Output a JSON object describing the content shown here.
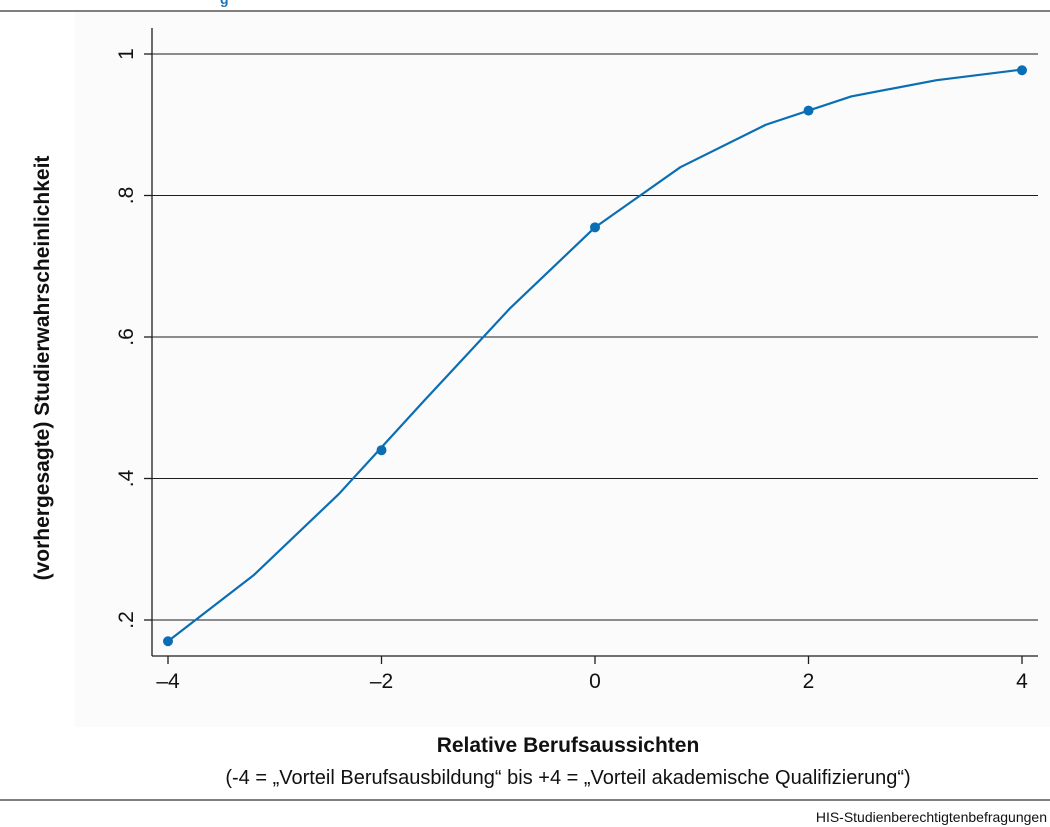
{
  "header_text": "g",
  "source_note": "HIS-Studienberechtigtenbefragungen",
  "chart_data": {
    "type": "line",
    "title": "",
    "xlabel": "Relative Berufsaussichten",
    "xlabel_sub": "(-4 = „Vorteil Berufsausbildung“ bis +4 = „Vorteil akademische Qualifizierung“)",
    "ylabel": "(vorhergesagte) Studierwahrscheinlichkeit",
    "xlim": [
      -4,
      4
    ],
    "ylim": [
      0.2,
      1.0
    ],
    "x_ticks": [
      -4,
      -2,
      0,
      2,
      4
    ],
    "x_tick_labels": [
      "–4",
      "–2",
      "0",
      "2",
      "4"
    ],
    "y_ticks": [
      0.2,
      0.4,
      0.6,
      0.8,
      1.0
    ],
    "y_tick_labels": [
      ".2",
      ".4",
      ".6",
      ".8",
      "1"
    ],
    "grid": "horizontal",
    "color": "#0a6eb4",
    "series": [
      {
        "line": {
          "x": [
            -4,
            -3.2,
            -2.4,
            -1.6,
            -0.8,
            0,
            0.8,
            1.6,
            2.4,
            3.2,
            4
          ],
          "y": [
            0.17,
            0.263,
            0.378,
            0.51,
            0.64,
            0.755,
            0.84,
            0.9,
            0.94,
            0.963,
            0.978
          ]
        },
        "markers": {
          "x": [
            -4,
            -2,
            0,
            2,
            4
          ],
          "y": [
            0.17,
            0.44,
            0.755,
            0.92,
            0.977
          ]
        }
      }
    ]
  }
}
